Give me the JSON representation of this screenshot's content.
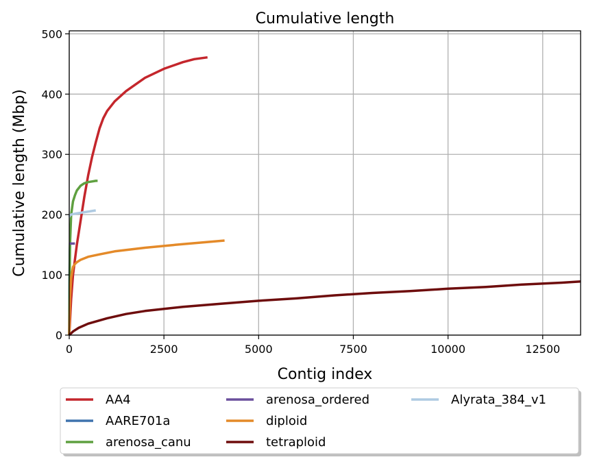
{
  "chart_data": {
    "type": "line",
    "title": "Cumulative length",
    "xlabel": "Contig index",
    "ylabel": "Cumulative length (Mbp)",
    "xlim": [
      0,
      13500
    ],
    "ylim": [
      0,
      505
    ],
    "xticks": [
      0,
      2500,
      5000,
      7500,
      10000,
      12500
    ],
    "yticks": [
      0,
      100,
      200,
      300,
      400,
      500
    ],
    "grid": true,
    "legend_position": "bottom",
    "legend_columns": 3,
    "series": [
      {
        "name": "AA4",
        "color": "#c4262c",
        "x": [
          0,
          50,
          100,
          200,
          300,
          400,
          500,
          600,
          700,
          800,
          900,
          1000,
          1200,
          1500,
          2000,
          2500,
          3000,
          3300,
          3650
        ],
        "y": [
          0,
          60,
          100,
          150,
          190,
          230,
          265,
          295,
          320,
          343,
          360,
          372,
          388,
          405,
          427,
          442,
          453,
          458,
          461
        ]
      },
      {
        "name": "AARE701a",
        "color": "#3f73ae",
        "x": [
          0,
          8,
          16,
          24
        ],
        "y": [
          0,
          90,
          140,
          152
        ]
      },
      {
        "name": "arenosa_canu",
        "color": "#5fa040",
        "x": [
          0,
          20,
          50,
          100,
          150,
          200,
          300,
          400,
          500,
          600,
          700,
          750
        ],
        "y": [
          0,
          150,
          200,
          222,
          232,
          240,
          248,
          252,
          254,
          255,
          256,
          256
        ]
      },
      {
        "name": "arenosa_ordered",
        "color": "#6a4f9c",
        "x": [
          10,
          150
        ],
        "y": [
          152,
          152
        ]
      },
      {
        "name": "diploid",
        "color": "#e48a29",
        "x": [
          0,
          20,
          50,
          100,
          150,
          200,
          300,
          500,
          800,
          1200,
          2000,
          3000,
          4100
        ],
        "y": [
          0,
          60,
          95,
          113,
          118,
          121,
          125,
          130,
          134,
          139,
          145,
          151,
          157
        ]
      },
      {
        "name": "tetraploid",
        "color": "#6e0d0d",
        "x": [
          0,
          100,
          250,
          500,
          1000,
          1500,
          2000,
          3000,
          4000,
          5000,
          6000,
          7000,
          8000,
          9000,
          10000,
          11000,
          12000,
          13000,
          13500
        ],
        "y": [
          0,
          6,
          12,
          19,
          28,
          35,
          40,
          47,
          52,
          57,
          61,
          66,
          70,
          73,
          77,
          80,
          84,
          87,
          89
        ]
      },
      {
        "name": "Alyrata_384_v1",
        "color": "#aecae2",
        "x": [
          0,
          20,
          50,
          100,
          200,
          300,
          400,
          500,
          600,
          700
        ],
        "y": [
          196,
          199,
          200,
          201,
          202,
          203,
          204,
          205,
          206,
          207
        ]
      }
    ],
    "legend_order": [
      "AA4",
      "AARE701a",
      "arenosa_canu",
      "arenosa_ordered",
      "diploid",
      "tetraploid",
      "Alyrata_384_v1"
    ]
  }
}
